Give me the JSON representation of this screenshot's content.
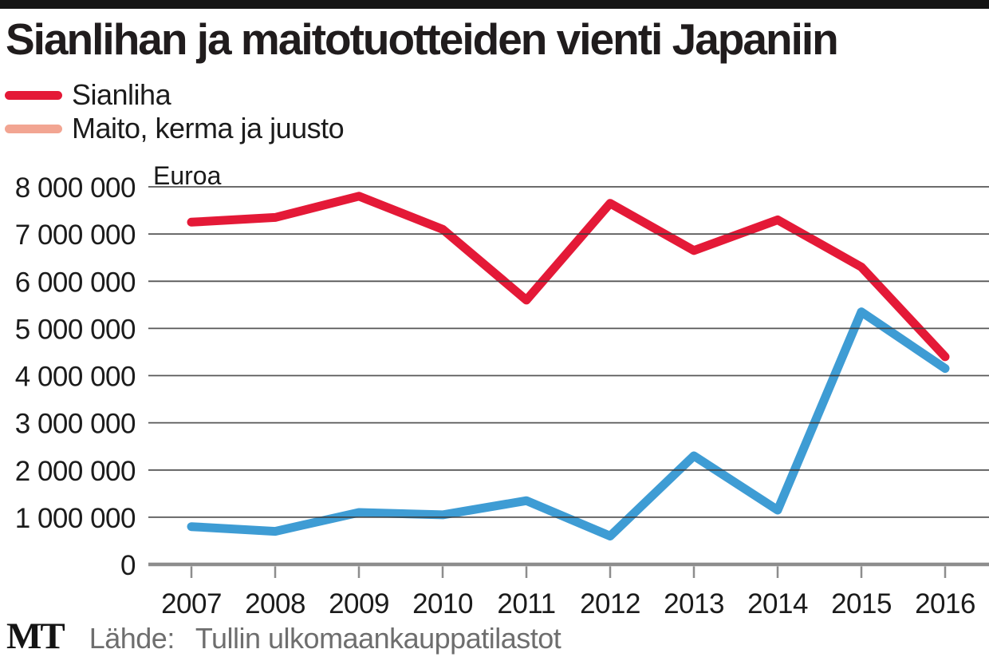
{
  "header": {
    "title": "Sianlihan ja maitotuotteiden vienti Japaniin"
  },
  "legend": [
    {
      "label": "Sianliha",
      "swatch_color": "#e41937"
    },
    {
      "label": "Maito, kerma ja juusto",
      "swatch_color": "#f2a592"
    }
  ],
  "chart_data": {
    "type": "line",
    "title": "Sianlihan ja maitotuotteiden vienti Japaniin",
    "unit_label": "Euroa",
    "categories": [
      "2007",
      "2008",
      "2009",
      "2010",
      "2011",
      "2012",
      "2013",
      "2014",
      "2015",
      "2016"
    ],
    "series": [
      {
        "name": "Sianliha",
        "color": "#e41937",
        "values": [
          7250000,
          7350000,
          7800000,
          7100000,
          5600000,
          7650000,
          6650000,
          7300000,
          6300000,
          4400000
        ]
      },
      {
        "name": "Maito, kerma ja juusto",
        "color": "#3e9cd4",
        "values": [
          800000,
          700000,
          1100000,
          1050000,
          1350000,
          600000,
          2300000,
          1150000,
          5350000,
          4150000
        ]
      }
    ],
    "ylim": [
      0,
      8000000
    ],
    "ytick_labels": [
      "0",
      "1 000 000",
      "2 000 000",
      "3 000 000",
      "4 000 000",
      "5 000 000",
      "6 000 000",
      "7 000 000",
      "8 000 000"
    ],
    "grid": true,
    "grid_color": "#3a3a3a",
    "axis_color": "#8d8d8d",
    "legend_position": "top-left"
  },
  "footer": {
    "logo": "MT",
    "source_label": "Lähde:",
    "source": "Tullin ulkomaankauppatilastot"
  }
}
